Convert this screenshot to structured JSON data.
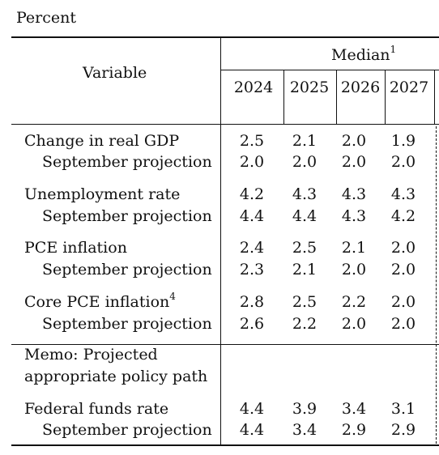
{
  "unit_label": "Percent",
  "header": {
    "variable_label": "Variable",
    "median_label": "Median",
    "median_footnote": "1",
    "years": [
      "2024",
      "2025",
      "2026",
      "2027"
    ]
  },
  "rows": [
    {
      "label": "Change in real GDP",
      "footnote": "",
      "values": [
        "2.5",
        "2.1",
        "2.0",
        "1.9"
      ]
    },
    {
      "label": "September projection",
      "footnote": "",
      "values": [
        "2.0",
        "2.0",
        "2.0",
        "2.0"
      ]
    },
    {
      "label": "Unemployment rate",
      "footnote": "",
      "values": [
        "4.2",
        "4.3",
        "4.3",
        "4.3"
      ]
    },
    {
      "label": "September projection",
      "footnote": "",
      "values": [
        "4.4",
        "4.4",
        "4.3",
        "4.2"
      ]
    },
    {
      "label": "PCE inflation",
      "footnote": "",
      "values": [
        "2.4",
        "2.5",
        "2.1",
        "2.0"
      ]
    },
    {
      "label": "September projection",
      "footnote": "",
      "values": [
        "2.3",
        "2.1",
        "2.0",
        "2.0"
      ]
    },
    {
      "label": "Core PCE inflation",
      "footnote": "4",
      "values": [
        "2.8",
        "2.5",
        "2.2",
        "2.0"
      ]
    },
    {
      "label": "September projection",
      "footnote": "",
      "values": [
        "2.6",
        "2.2",
        "2.0",
        "2.0"
      ]
    }
  ],
  "memo": {
    "line1": "Memo: Projected",
    "line2": "appropriate policy path"
  },
  "memo_rows": [
    {
      "label": "Federal funds rate",
      "values": [
        "4.4",
        "3.9",
        "3.4",
        "3.1"
      ]
    },
    {
      "label": "September projection",
      "values": [
        "4.4",
        "3.4",
        "2.9",
        "2.9"
      ]
    }
  ]
}
